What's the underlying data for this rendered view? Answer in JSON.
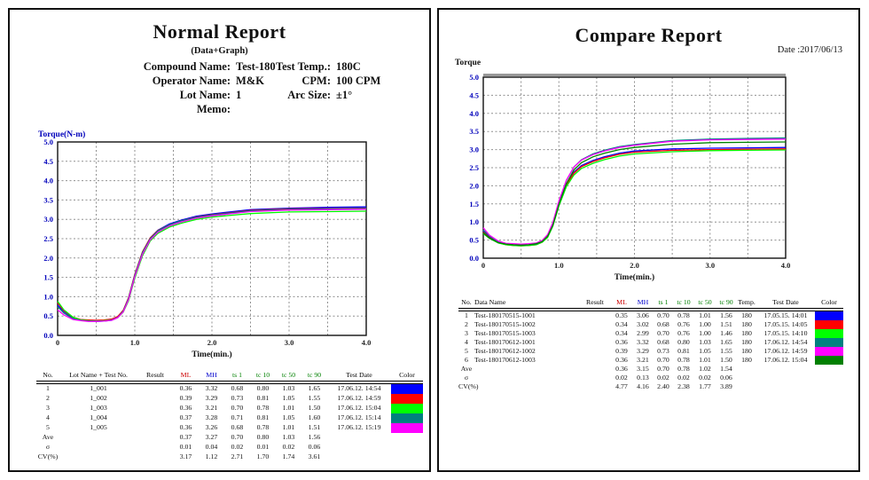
{
  "normal_report": {
    "title": "Normal Report",
    "subtitle": "(Data+Graph)",
    "info_left": [
      {
        "label": "Compound Name:",
        "value": "Test-180"
      },
      {
        "label": "Operator Name:",
        "value": "M&K"
      },
      {
        "label": "Lot Name:",
        "value": "1"
      },
      {
        "label": "Memo:",
        "value": ""
      }
    ],
    "info_right": [
      {
        "label": "Test Temp.:",
        "value": "180C"
      },
      {
        "label": "CPM:",
        "value": "100 CPM"
      },
      {
        "label": "Arc Size:",
        "value": "±1°"
      }
    ],
    "table": {
      "headers": [
        {
          "label": "No.",
          "color": "#000000"
        },
        {
          "label": "Lot Name + Test No.",
          "color": "#000000"
        },
        {
          "label": "Result",
          "color": "#000000"
        },
        {
          "label": "ML",
          "color": "#cc0000"
        },
        {
          "label": "MH",
          "color": "#0000cc"
        },
        {
          "label": "ts 1",
          "color": "#008000"
        },
        {
          "label": "tc 10",
          "color": "#008000"
        },
        {
          "label": "tc 50",
          "color": "#008000"
        },
        {
          "label": "tc 90",
          "color": "#008000"
        },
        {
          "label": "Test Date",
          "color": "#000000"
        },
        {
          "label": "Color",
          "color": "#000000"
        }
      ],
      "rows": [
        {
          "cells": [
            "1",
            "1_001",
            "",
            "0.36",
            "3.32",
            "0.68",
            "0.80",
            "1.03",
            "1.65",
            "17.06.12. 14:54"
          ],
          "color": "#0000ff"
        },
        {
          "cells": [
            "2",
            "1_002",
            "",
            "0.39",
            "3.29",
            "0.73",
            "0.81",
            "1.05",
            "1.55",
            "17.06.12. 14:59"
          ],
          "color": "#ff0000"
        },
        {
          "cells": [
            "3",
            "1_003",
            "",
            "0.36",
            "3.21",
            "0.70",
            "0.78",
            "1.01",
            "1.50",
            "17.06.12. 15:04"
          ],
          "color": "#00ff00"
        },
        {
          "cells": [
            "4",
            "1_004",
            "",
            "0.37",
            "3.28",
            "0.71",
            "0.81",
            "1.05",
            "1.60",
            "17.06.12. 15:14"
          ],
          "color": "#008080"
        },
        {
          "cells": [
            "5",
            "1_005",
            "",
            "0.36",
            "3.26",
            "0.68",
            "0.78",
            "1.01",
            "1.51",
            "17.06.12. 15:19"
          ],
          "color": "#ff00ff"
        },
        {
          "cells": [
            "Ave",
            "",
            "",
            "0.37",
            "3.27",
            "0.70",
            "0.80",
            "1.03",
            "1.56",
            ""
          ],
          "color": ""
        },
        {
          "cells": [
            "σ",
            "",
            "",
            "0.01",
            "0.04",
            "0.02",
            "0.01",
            "0.02",
            "0.06",
            ""
          ],
          "color": ""
        },
        {
          "cells": [
            "CV(%)",
            "",
            "",
            "3.17",
            "1.12",
            "2.71",
            "1.70",
            "1.74",
            "3.61",
            ""
          ],
          "color": ""
        }
      ]
    }
  },
  "compare_report": {
    "title": "Compare Report",
    "date_label": "Date :2017/06/13",
    "table": {
      "headers": [
        {
          "label": "No.",
          "color": "#000000"
        },
        {
          "label": "Data Name",
          "color": "#000000"
        },
        {
          "label": "Result",
          "color": "#000000"
        },
        {
          "label": "ML",
          "color": "#cc0000"
        },
        {
          "label": "MH",
          "color": "#0000cc"
        },
        {
          "label": "ts 1",
          "color": "#008000"
        },
        {
          "label": "tc 10",
          "color": "#008000"
        },
        {
          "label": "tc 50",
          "color": "#008000"
        },
        {
          "label": "tc 90",
          "color": "#008000"
        },
        {
          "label": "Temp.",
          "color": "#000000"
        },
        {
          "label": "Test Date",
          "color": "#000000"
        },
        {
          "label": "Color",
          "color": "#000000"
        }
      ],
      "rows": [
        {
          "cells": [
            "1",
            "Test-180170515-1001",
            "",
            "0.35",
            "3.06",
            "0.70",
            "0.78",
            "1.01",
            "1.56",
            "180",
            "17.05.15. 14:01"
          ],
          "color": "#0000ff"
        },
        {
          "cells": [
            "2",
            "Test-180170515-1002",
            "",
            "0.34",
            "3.02",
            "0.68",
            "0.76",
            "1.00",
            "1.51",
            "180",
            "17.05.15. 14:05"
          ],
          "color": "#ff0000"
        },
        {
          "cells": [
            "3",
            "Test-180170515-1003",
            "",
            "0.34",
            "2.99",
            "0.70",
            "0.76",
            "1.00",
            "1.46",
            "180",
            "17.05.15. 14:10"
          ],
          "color": "#00ff00"
        },
        {
          "cells": [
            "4",
            "Test-180170612-1001",
            "",
            "0.36",
            "3.32",
            "0.68",
            "0.80",
            "1.03",
            "1.65",
            "180",
            "17.06.12. 14:54"
          ],
          "color": "#008080"
        },
        {
          "cells": [
            "5",
            "Test-180170612-1002",
            "",
            "0.39",
            "3.29",
            "0.73",
            "0.81",
            "1.05",
            "1.55",
            "180",
            "17.06.12. 14:59"
          ],
          "color": "#ff00ff"
        },
        {
          "cells": [
            "6",
            "Test-180170612-1003",
            "",
            "0.36",
            "3.21",
            "0.70",
            "0.78",
            "1.01",
            "1.50",
            "180",
            "17.06.12. 15:04"
          ],
          "color": "#008000"
        },
        {
          "cells": [
            "Ave",
            "",
            "",
            "0.36",
            "3.15",
            "0.70",
            "0.78",
            "1.02",
            "1.54",
            "",
            ""
          ],
          "color": ""
        },
        {
          "cells": [
            "σ",
            "",
            "",
            "0.02",
            "0.13",
            "0.02",
            "0.02",
            "0.02",
            "0.06",
            "",
            ""
          ],
          "color": ""
        },
        {
          "cells": [
            "CV(%)",
            "",
            "",
            "4.77",
            "4.16",
            "2.40",
            "2.38",
            "1.77",
            "3.89",
            "",
            ""
          ],
          "color": ""
        }
      ]
    }
  },
  "chart_data": [
    {
      "type": "line",
      "title": "",
      "ylabel": "Torque(N-m)",
      "ylabel_color": "#0000bb",
      "xlabel": "Time(min.)",
      "xlim": [
        0,
        4
      ],
      "ylim": [
        0,
        5
      ],
      "grid_step": 0.5,
      "grid": "dashed gray every 0.5 in x and y",
      "x_ticks": [
        "0",
        "1.0",
        "2.0",
        "3.0",
        "4.0"
      ],
      "y_ticks": [
        "0.0",
        "0.5",
        "1.0",
        "1.5",
        "2.0",
        "2.5",
        "3.0",
        "3.5",
        "4.0",
        "4.5",
        "5.0"
      ],
      "x": [
        0,
        0.08,
        0.2,
        0.3,
        0.4,
        0.5,
        0.6,
        0.7,
        0.78,
        0.85,
        0.92,
        1.0,
        1.1,
        1.2,
        1.3,
        1.45,
        1.6,
        1.8,
        2.0,
        2.5,
        3.0,
        3.5,
        4.0
      ],
      "series": [
        {
          "name": "1_001",
          "color": "#0000ff",
          "values": [
            0.78,
            0.62,
            0.45,
            0.39,
            0.37,
            0.36,
            0.37,
            0.39,
            0.46,
            0.62,
            0.95,
            1.55,
            2.15,
            2.52,
            2.72,
            2.88,
            2.98,
            3.08,
            3.14,
            3.25,
            3.29,
            3.31,
            3.32
          ]
        },
        {
          "name": "1_002",
          "color": "#ff0000",
          "values": [
            0.84,
            0.64,
            0.47,
            0.41,
            0.4,
            0.39,
            0.4,
            0.42,
            0.49,
            0.65,
            0.98,
            1.58,
            2.16,
            2.52,
            2.71,
            2.86,
            2.96,
            3.06,
            3.12,
            3.23,
            3.27,
            3.28,
            3.29
          ]
        },
        {
          "name": "1_003",
          "color": "#00ff00",
          "values": [
            0.88,
            0.66,
            0.47,
            0.4,
            0.38,
            0.37,
            0.38,
            0.4,
            0.46,
            0.6,
            0.9,
            1.48,
            2.06,
            2.44,
            2.64,
            2.8,
            2.9,
            3.0,
            3.06,
            3.15,
            3.19,
            3.2,
            3.21
          ]
        },
        {
          "name": "1_004",
          "color": "#008080",
          "values": [
            0.74,
            0.58,
            0.43,
            0.39,
            0.37,
            0.37,
            0.37,
            0.4,
            0.47,
            0.63,
            0.96,
            1.56,
            2.14,
            2.5,
            2.7,
            2.86,
            2.96,
            3.05,
            3.11,
            3.22,
            3.26,
            3.27,
            3.28
          ]
        },
        {
          "name": "1_005",
          "color": "#ff00ff",
          "values": [
            0.66,
            0.53,
            0.41,
            0.38,
            0.36,
            0.36,
            0.37,
            0.39,
            0.46,
            0.61,
            0.93,
            1.52,
            2.1,
            2.47,
            2.67,
            2.83,
            2.93,
            3.03,
            3.09,
            3.2,
            3.24,
            3.25,
            3.26
          ]
        }
      ]
    },
    {
      "type": "line",
      "title": "",
      "ylabel": "Torque",
      "ylabel_color": "#111111",
      "xlabel": "Time(min.)",
      "xlim": [
        0,
        4
      ],
      "ylim": [
        0,
        5
      ],
      "grid_step": 0.5,
      "grid": "dashed gray every 0.5 in x and y",
      "x_ticks": [
        "0",
        "1.0",
        "2.0",
        "3.0",
        "4.0"
      ],
      "y_ticks": [
        "0.0",
        "0.5",
        "1.0",
        "1.5",
        "2.0",
        "2.5",
        "3.0",
        "3.5",
        "4.0",
        "4.5",
        "5.0"
      ],
      "x": [
        0,
        0.08,
        0.2,
        0.3,
        0.4,
        0.5,
        0.6,
        0.7,
        0.78,
        0.85,
        0.92,
        1.0,
        1.1,
        1.2,
        1.3,
        1.45,
        1.6,
        1.8,
        2.0,
        2.5,
        3.0,
        3.5,
        4.0
      ],
      "series": [
        {
          "name": "Test-180170515-1001",
          "color": "#0000ff",
          "values": [
            0.76,
            0.6,
            0.44,
            0.38,
            0.36,
            0.35,
            0.36,
            0.38,
            0.45,
            0.6,
            0.92,
            1.5,
            2.05,
            2.38,
            2.56,
            2.7,
            2.8,
            2.9,
            2.96,
            3.02,
            3.04,
            3.05,
            3.06
          ]
        },
        {
          "name": "Test-180170515-1002",
          "color": "#ff0000",
          "values": [
            0.72,
            0.57,
            0.43,
            0.37,
            0.35,
            0.34,
            0.35,
            0.37,
            0.44,
            0.58,
            0.9,
            1.47,
            2.02,
            2.35,
            2.53,
            2.67,
            2.77,
            2.87,
            2.93,
            2.98,
            3.0,
            3.01,
            3.02
          ]
        },
        {
          "name": "Test-180170515-1003",
          "color": "#00ff00",
          "values": [
            0.68,
            0.55,
            0.42,
            0.37,
            0.35,
            0.34,
            0.35,
            0.37,
            0.44,
            0.57,
            0.88,
            1.44,
            1.98,
            2.3,
            2.48,
            2.62,
            2.72,
            2.82,
            2.88,
            2.94,
            2.97,
            2.98,
            2.99
          ]
        },
        {
          "name": "Test-180170612-1001",
          "color": "#008080",
          "values": [
            0.78,
            0.62,
            0.45,
            0.39,
            0.37,
            0.36,
            0.37,
            0.39,
            0.46,
            0.62,
            0.95,
            1.55,
            2.15,
            2.52,
            2.72,
            2.88,
            2.98,
            3.08,
            3.14,
            3.25,
            3.29,
            3.31,
            3.32
          ]
        },
        {
          "name": "Test-180170612-1002",
          "color": "#ff00ff",
          "values": [
            0.84,
            0.64,
            0.47,
            0.41,
            0.4,
            0.39,
            0.4,
            0.42,
            0.49,
            0.65,
            0.98,
            1.58,
            2.16,
            2.52,
            2.71,
            2.86,
            2.96,
            3.06,
            3.12,
            3.23,
            3.27,
            3.28,
            3.29
          ]
        },
        {
          "name": "Test-180170612-1003",
          "color": "#008000",
          "values": [
            0.7,
            0.56,
            0.43,
            0.39,
            0.37,
            0.36,
            0.37,
            0.4,
            0.46,
            0.6,
            0.9,
            1.48,
            2.06,
            2.44,
            2.64,
            2.8,
            2.9,
            3.0,
            3.06,
            3.15,
            3.19,
            3.2,
            3.21
          ]
        }
      ]
    }
  ]
}
